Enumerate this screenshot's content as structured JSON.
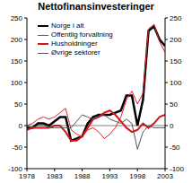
{
  "chart_data": {
    "type": "line",
    "title": "Nettofinansinvesteringer",
    "x": [
      1978,
      1979,
      1980,
      1981,
      1982,
      1983,
      1984,
      1985,
      1986,
      1987,
      1988,
      1989,
      1990,
      1991,
      1992,
      1993,
      1994,
      1995,
      1996,
      1997,
      1998,
      1999,
      2000,
      2001,
      2002,
      2003
    ],
    "series": [
      {
        "name": "Norge i alt",
        "color": "#000000",
        "values": [
          -5,
          -5,
          5,
          5,
          0,
          10,
          20,
          20,
          -35,
          -30,
          -25,
          5,
          20,
          25,
          25,
          25,
          30,
          35,
          70,
          70,
          0,
          60,
          220,
          230,
          200,
          185
        ]
      },
      {
        "name": "Offentlig forvaltning",
        "color": "#e8202a",
        "values": [
          0,
          5,
          15,
          20,
          15,
          20,
          30,
          40,
          -10,
          -20,
          -25,
          -10,
          -5,
          -15,
          -30,
          -20,
          -5,
          20,
          60,
          80,
          50,
          75,
          225,
          235,
          195,
          170
        ]
      },
      {
        "name": "Husholdninger",
        "color": "#d8101a",
        "values": [
          -10,
          -5,
          -5,
          -5,
          -5,
          0,
          0,
          -15,
          -35,
          -35,
          -25,
          -5,
          15,
          20,
          30,
          35,
          25,
          10,
          -5,
          -15,
          -10,
          5,
          -5,
          5,
          20,
          25
        ]
      },
      {
        "name": "Øvrige sektorer",
        "color": "#555555",
        "values": [
          0,
          -5,
          0,
          0,
          -5,
          -5,
          -5,
          -5,
          -5,
          10,
          25,
          20,
          15,
          20,
          25,
          15,
          10,
          5,
          15,
          5,
          -55,
          -15,
          0,
          -5,
          -5,
          -5
        ]
      }
    ],
    "xlim": [
      1978,
      2003
    ],
    "xticks": [
      1978,
      1983,
      1988,
      1993,
      1998,
      2003
    ],
    "ylim": [
      -100,
      250
    ],
    "yticks": [
      -100,
      -50,
      0,
      50,
      100,
      150,
      200,
      250
    ],
    "y2lim": [
      -100,
      250
    ],
    "y2ticks": [
      -100,
      -50,
      0,
      50,
      100,
      150,
      200,
      250
    ],
    "grid": false,
    "legend": "upper left"
  }
}
